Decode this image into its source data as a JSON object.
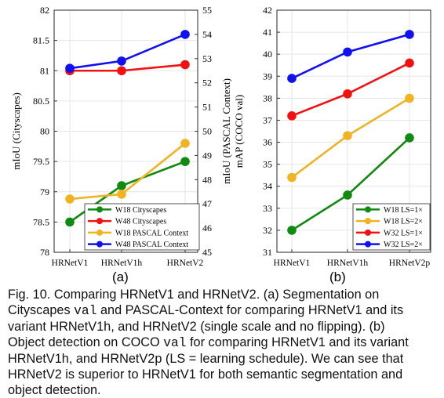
{
  "chart_data": [
    {
      "type": "line",
      "panel_label": "(a)",
      "categories": [
        "HRNetV1",
        "HRNetV1h",
        "HRNetV2"
      ],
      "ylabel": "mIoU (Cityscapes)",
      "ylabel_right": "mIoU (PASCAL Context)",
      "ylim": [
        78,
        82
      ],
      "ylim_right": [
        45,
        55
      ],
      "yticks": [
        "78",
        "78.5",
        "79",
        "79.5",
        "80",
        "80.5",
        "81",
        "81.5",
        "82"
      ],
      "yticks_right": [
        "45",
        "46",
        "47",
        "48",
        "49",
        "50",
        "51",
        "52",
        "53",
        "54",
        "55"
      ],
      "grid": true,
      "legend_position": "bottom-right",
      "series": [
        {
          "name": "W18 Cityscapes",
          "axis": "left",
          "color": "#108a10",
          "values": [
            78.5,
            79.1,
            79.5
          ]
        },
        {
          "name": "W48 Cityscapes",
          "axis": "left",
          "color": "#f21010",
          "values": [
            81.0,
            81.0,
            81.1
          ]
        },
        {
          "name": "W18 PASCAL Context",
          "axis": "right",
          "color": "#f0b321",
          "values": [
            47.2,
            47.4,
            49.5
          ]
        },
        {
          "name": "W48 PASCAL Context",
          "axis": "right",
          "color": "#1010f0",
          "values": [
            52.6,
            52.9,
            54.0
          ]
        }
      ]
    },
    {
      "type": "line",
      "panel_label": "(b)",
      "categories": [
        "HRNetV1",
        "HRNetV1h",
        "HRNetV2p"
      ],
      "ylabel": "mAP (COCO val)",
      "ylim": [
        31,
        42
      ],
      "yticks": [
        "31",
        "32",
        "33",
        "34",
        "35",
        "36",
        "37",
        "38",
        "39",
        "40",
        "41",
        "42"
      ],
      "grid": true,
      "legend_position": "bottom-right",
      "series": [
        {
          "name": "W18 LS=1×",
          "color": "#108a10",
          "values": [
            32.0,
            33.6,
            36.2
          ]
        },
        {
          "name": "W18 LS=2×",
          "color": "#f0b321",
          "values": [
            34.4,
            36.3,
            38.0
          ]
        },
        {
          "name": "W32 LS=1×",
          "color": "#f21010",
          "values": [
            37.2,
            38.2,
            39.6
          ]
        },
        {
          "name": "W32 LS=2×",
          "color": "#1010f0",
          "values": [
            38.9,
            40.1,
            40.9
          ]
        }
      ]
    }
  ],
  "caption": {
    "line1": "Fig. 10. Comparing HRNetV1 and HRNetV2. (a) Segmentation on",
    "line2a": "Cityscapes ",
    "line2b": "val",
    "line2c": " and PASCAL-Context for comparing HRNetV1 and its",
    "line3": "variant HRNetV1h, and HRNetV2 (single scale and no flipping). (b)",
    "line4a": "Object detection on COCO ",
    "line4b": "val",
    "line4c": " for comparing HRNetV1 and its variant",
    "line5": "HRNetV1h, and HRNetV2p (LS = learning schedule). We can see that",
    "line6": "HRNetV2 is superior to HRNetV1 for both semantic segmentation and",
    "line7": "object detection."
  }
}
